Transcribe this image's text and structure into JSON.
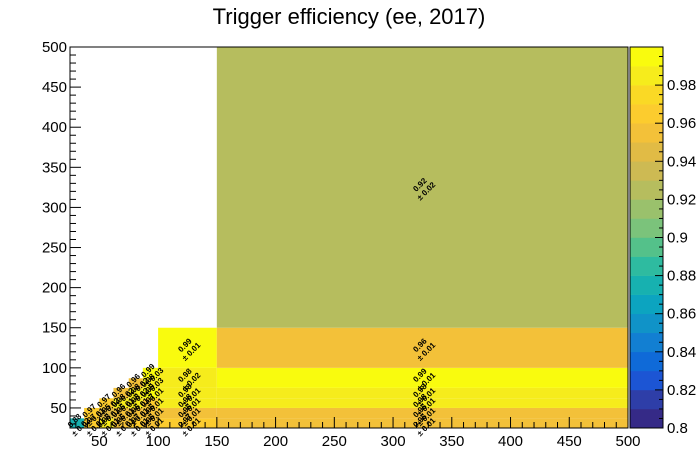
{
  "chart_data": {
    "type": "heatmap",
    "title": "Trigger efficiency (ee, 2017)",
    "xlabel": "",
    "ylabel": "",
    "xlim": [
      25,
      500
    ],
    "ylim": [
      25,
      500
    ],
    "x_ticks": [
      50,
      100,
      150,
      200,
      250,
      300,
      350,
      400,
      450,
      500
    ],
    "y_ticks": [
      50,
      100,
      150,
      200,
      250,
      300,
      350,
      400,
      450,
      500
    ],
    "zlim": [
      0.8,
      1.0
    ],
    "z_ticks": [
      "0.8",
      "0.82",
      "0.84",
      "0.86",
      "0.88",
      "0.9",
      "0.92",
      "0.94",
      "0.96",
      "0.98"
    ],
    "palette": [
      "#352a87",
      "#2e3ea8",
      "#1c55d4",
      "#0f6ad8",
      "#127fd2",
      "#1093c8",
      "#0ca4c0",
      "#17b1b0",
      "#2ebba0",
      "#54c18a",
      "#7bc37b",
      "#9ac16c",
      "#b6bd5e",
      "#cdba53",
      "#e1bb45",
      "#f3c139",
      "#fccc2e",
      "#fad925",
      "#f6ec1c",
      "#f9fb0e"
    ],
    "cells": [
      {
        "x0": 25,
        "x1": 37,
        "y0": 25,
        "y1": 37,
        "value": 0.88,
        "label": "0.88",
        "error": "± 0.02"
      },
      {
        "x0": 37,
        "x1": 50,
        "y0": 25,
        "y1": 37,
        "value": 0.97,
        "label": "0.97",
        "error": "± 0.01"
      },
      {
        "x0": 37,
        "x1": 50,
        "y0": 37,
        "y1": 50,
        "value": 0.97,
        "label": "0.97",
        "error": "± 0.01"
      },
      {
        "x0": 50,
        "x1": 62,
        "y0": 25,
        "y1": 37,
        "value": 0.98,
        "label": "0.98",
        "error": "± 0.01"
      },
      {
        "x0": 50,
        "x1": 62,
        "y0": 37,
        "y1": 50,
        "value": 0.95,
        "label": "0.95",
        "error": "± 0.01"
      },
      {
        "x0": 50,
        "x1": 62,
        "y0": 50,
        "y1": 62,
        "value": 0.97,
        "label": "0.97",
        "error": "± 0.02"
      },
      {
        "x0": 62,
        "x1": 75,
        "y0": 25,
        "y1": 37,
        "value": 0.96,
        "label": "0.96",
        "error": "± 0.01"
      },
      {
        "x0": 62,
        "x1": 75,
        "y0": 37,
        "y1": 50,
        "value": 0.96,
        "label": "0.96",
        "error": "± 0.01"
      },
      {
        "x0": 62,
        "x1": 75,
        "y0": 50,
        "y1": 62,
        "value": 0.98,
        "label": "0.98",
        "error": "± 0.01"
      },
      {
        "x0": 62,
        "x1": 75,
        "y0": 62,
        "y1": 75,
        "value": 0.96,
        "label": "0.96",
        "error": "± 0.02"
      },
      {
        "x0": 75,
        "x1": 87,
        "y0": 25,
        "y1": 37,
        "value": 0.97,
        "label": "0.97",
        "error": "± 0.01"
      },
      {
        "x0": 75,
        "x1": 87,
        "y0": 37,
        "y1": 50,
        "value": 0.96,
        "label": "0.96",
        "error": "± 0.01"
      },
      {
        "x0": 75,
        "x1": 87,
        "y0": 50,
        "y1": 62,
        "value": 0.98,
        "label": "0.98",
        "error": "± 0.01"
      },
      {
        "x0": 75,
        "x1": 87,
        "y0": 62,
        "y1": 75,
        "value": 0.98,
        "label": "0.98",
        "error": "± 0.02"
      },
      {
        "x0": 75,
        "x1": 87,
        "y0": 75,
        "y1": 87,
        "value": 0.96,
        "label": "0.96",
        "error": "± 0.02"
      },
      {
        "x0": 87,
        "x1": 100,
        "y0": 25,
        "y1": 37,
        "value": 0.96,
        "label": "0.96",
        "error": "± 0.01"
      },
      {
        "x0": 87,
        "x1": 100,
        "y0": 37,
        "y1": 50,
        "value": 0.96,
        "label": "0.96",
        "error": "± 0.01"
      },
      {
        "x0": 87,
        "x1": 100,
        "y0": 50,
        "y1": 62,
        "value": 0.97,
        "label": "0.97",
        "error": "± 0.01"
      },
      {
        "x0": 87,
        "x1": 100,
        "y0": 62,
        "y1": 75,
        "value": 0.99,
        "label": "0.99",
        "error": "± 0.01"
      },
      {
        "x0": 87,
        "x1": 100,
        "y0": 75,
        "y1": 87,
        "value": 0.98,
        "label": "0.98",
        "error": "± 0.03"
      },
      {
        "x0": 87,
        "x1": 100,
        "y0": 87,
        "y1": 100,
        "value": 0.99,
        "label": "0.99",
        "error": "± 0.03"
      },
      {
        "x0": 100,
        "x1": 150,
        "y0": 25,
        "y1": 37,
        "value": 0.97,
        "label": "0.97",
        "error": "± 0.01"
      },
      {
        "x0": 100,
        "x1": 150,
        "y0": 37,
        "y1": 50,
        "value": 0.96,
        "label": "0.96",
        "error": "± 0.01"
      },
      {
        "x0": 100,
        "x1": 150,
        "y0": 50,
        "y1": 62,
        "value": 0.98,
        "label": "0.98",
        "error": "± 0.01"
      },
      {
        "x0": 100,
        "x1": 150,
        "y0": 62,
        "y1": 75,
        "value": 0.98,
        "label": "0.98",
        "error": "± 0.01"
      },
      {
        "x0": 100,
        "x1": 150,
        "y0": 75,
        "y1": 100,
        "value": 0.98,
        "label": "0.98",
        "error": "± 0.02"
      },
      {
        "x0": 100,
        "x1": 150,
        "y0": 100,
        "y1": 150,
        "value": 0.99,
        "label": "0.99",
        "error": "± 0.01"
      },
      {
        "x0": 150,
        "x1": 500,
        "y0": 25,
        "y1": 37,
        "value": 0.96,
        "label": "0.96",
        "error": "± 0.01"
      },
      {
        "x0": 150,
        "x1": 500,
        "y0": 37,
        "y1": 50,
        "value": 0.96,
        "label": "0.96",
        "error": "± 0.01"
      },
      {
        "x0": 150,
        "x1": 500,
        "y0": 50,
        "y1": 62,
        "value": 0.98,
        "label": "0.98",
        "error": "± 0.01"
      },
      {
        "x0": 150,
        "x1": 500,
        "y0": 62,
        "y1": 75,
        "value": 0.98,
        "label": "0.98",
        "error": "± 0.01"
      },
      {
        "x0": 150,
        "x1": 500,
        "y0": 75,
        "y1": 100,
        "value": 0.99,
        "label": "0.99",
        "error": "± 0.01"
      },
      {
        "x0": 150,
        "x1": 500,
        "y0": 100,
        "y1": 150,
        "value": 0.96,
        "label": "0.96",
        "error": "± 0.01"
      },
      {
        "x0": 150,
        "x1": 500,
        "y0": 150,
        "y1": 500,
        "value": 0.92,
        "label": "0.92",
        "error": "± 0.02"
      }
    ]
  }
}
